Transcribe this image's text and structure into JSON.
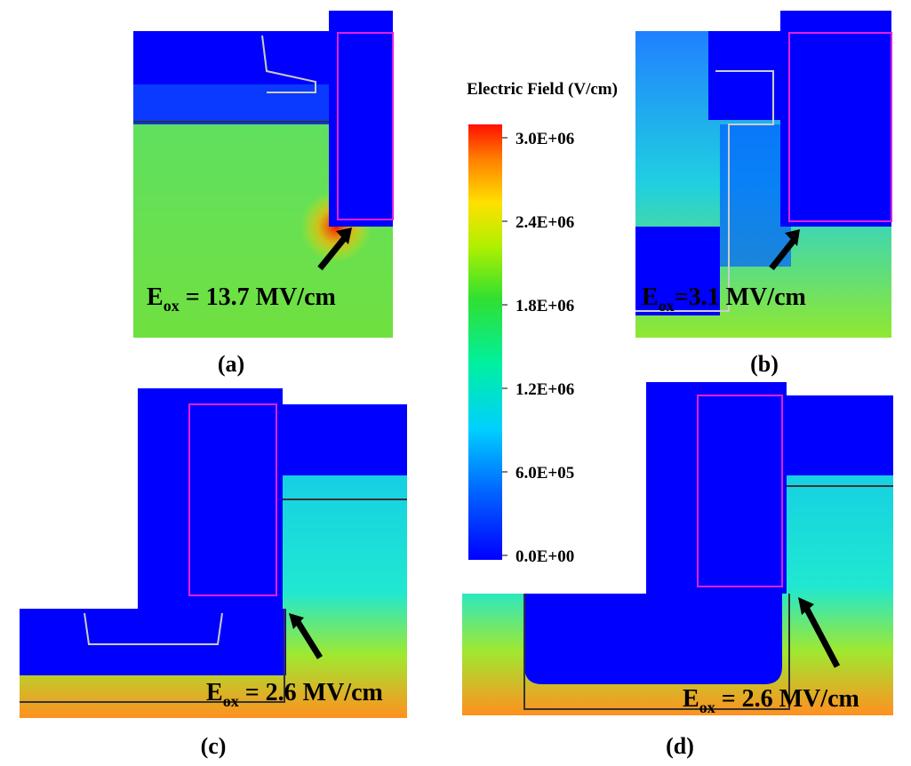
{
  "colorbar": {
    "title": "Electric Field (V/cm)",
    "lim": [
      0,
      3000000
    ],
    "ticks": [
      {
        "value": 3000000,
        "label": "3.0E+06"
      },
      {
        "value": 2400000,
        "label": "2.4E+06"
      },
      {
        "value": 1800000,
        "label": "1.8E+06"
      },
      {
        "value": 1200000,
        "label": "1.2E+06"
      },
      {
        "value": 600000,
        "label": "6.0E+05"
      },
      {
        "value": 0,
        "label": "0.0E+00"
      }
    ]
  },
  "panels": [
    {
      "label": "(a)",
      "annotation": {
        "symbol": "E",
        "subscript": "ox",
        "text": " = 13.7 MV/cm"
      }
    },
    {
      "label": "(b)",
      "annotation": {
        "symbol": "E",
        "subscript": "ox",
        "text": "=3.1 MV/cm"
      }
    },
    {
      "label": "(c)",
      "annotation": {
        "symbol": "E",
        "subscript": "ox",
        "text": " = 2.6 MV/cm"
      }
    },
    {
      "label": "(d)",
      "annotation": {
        "symbol": "E",
        "subscript": "ox",
        "text": " = 2.6 MV/cm"
      }
    }
  ]
}
